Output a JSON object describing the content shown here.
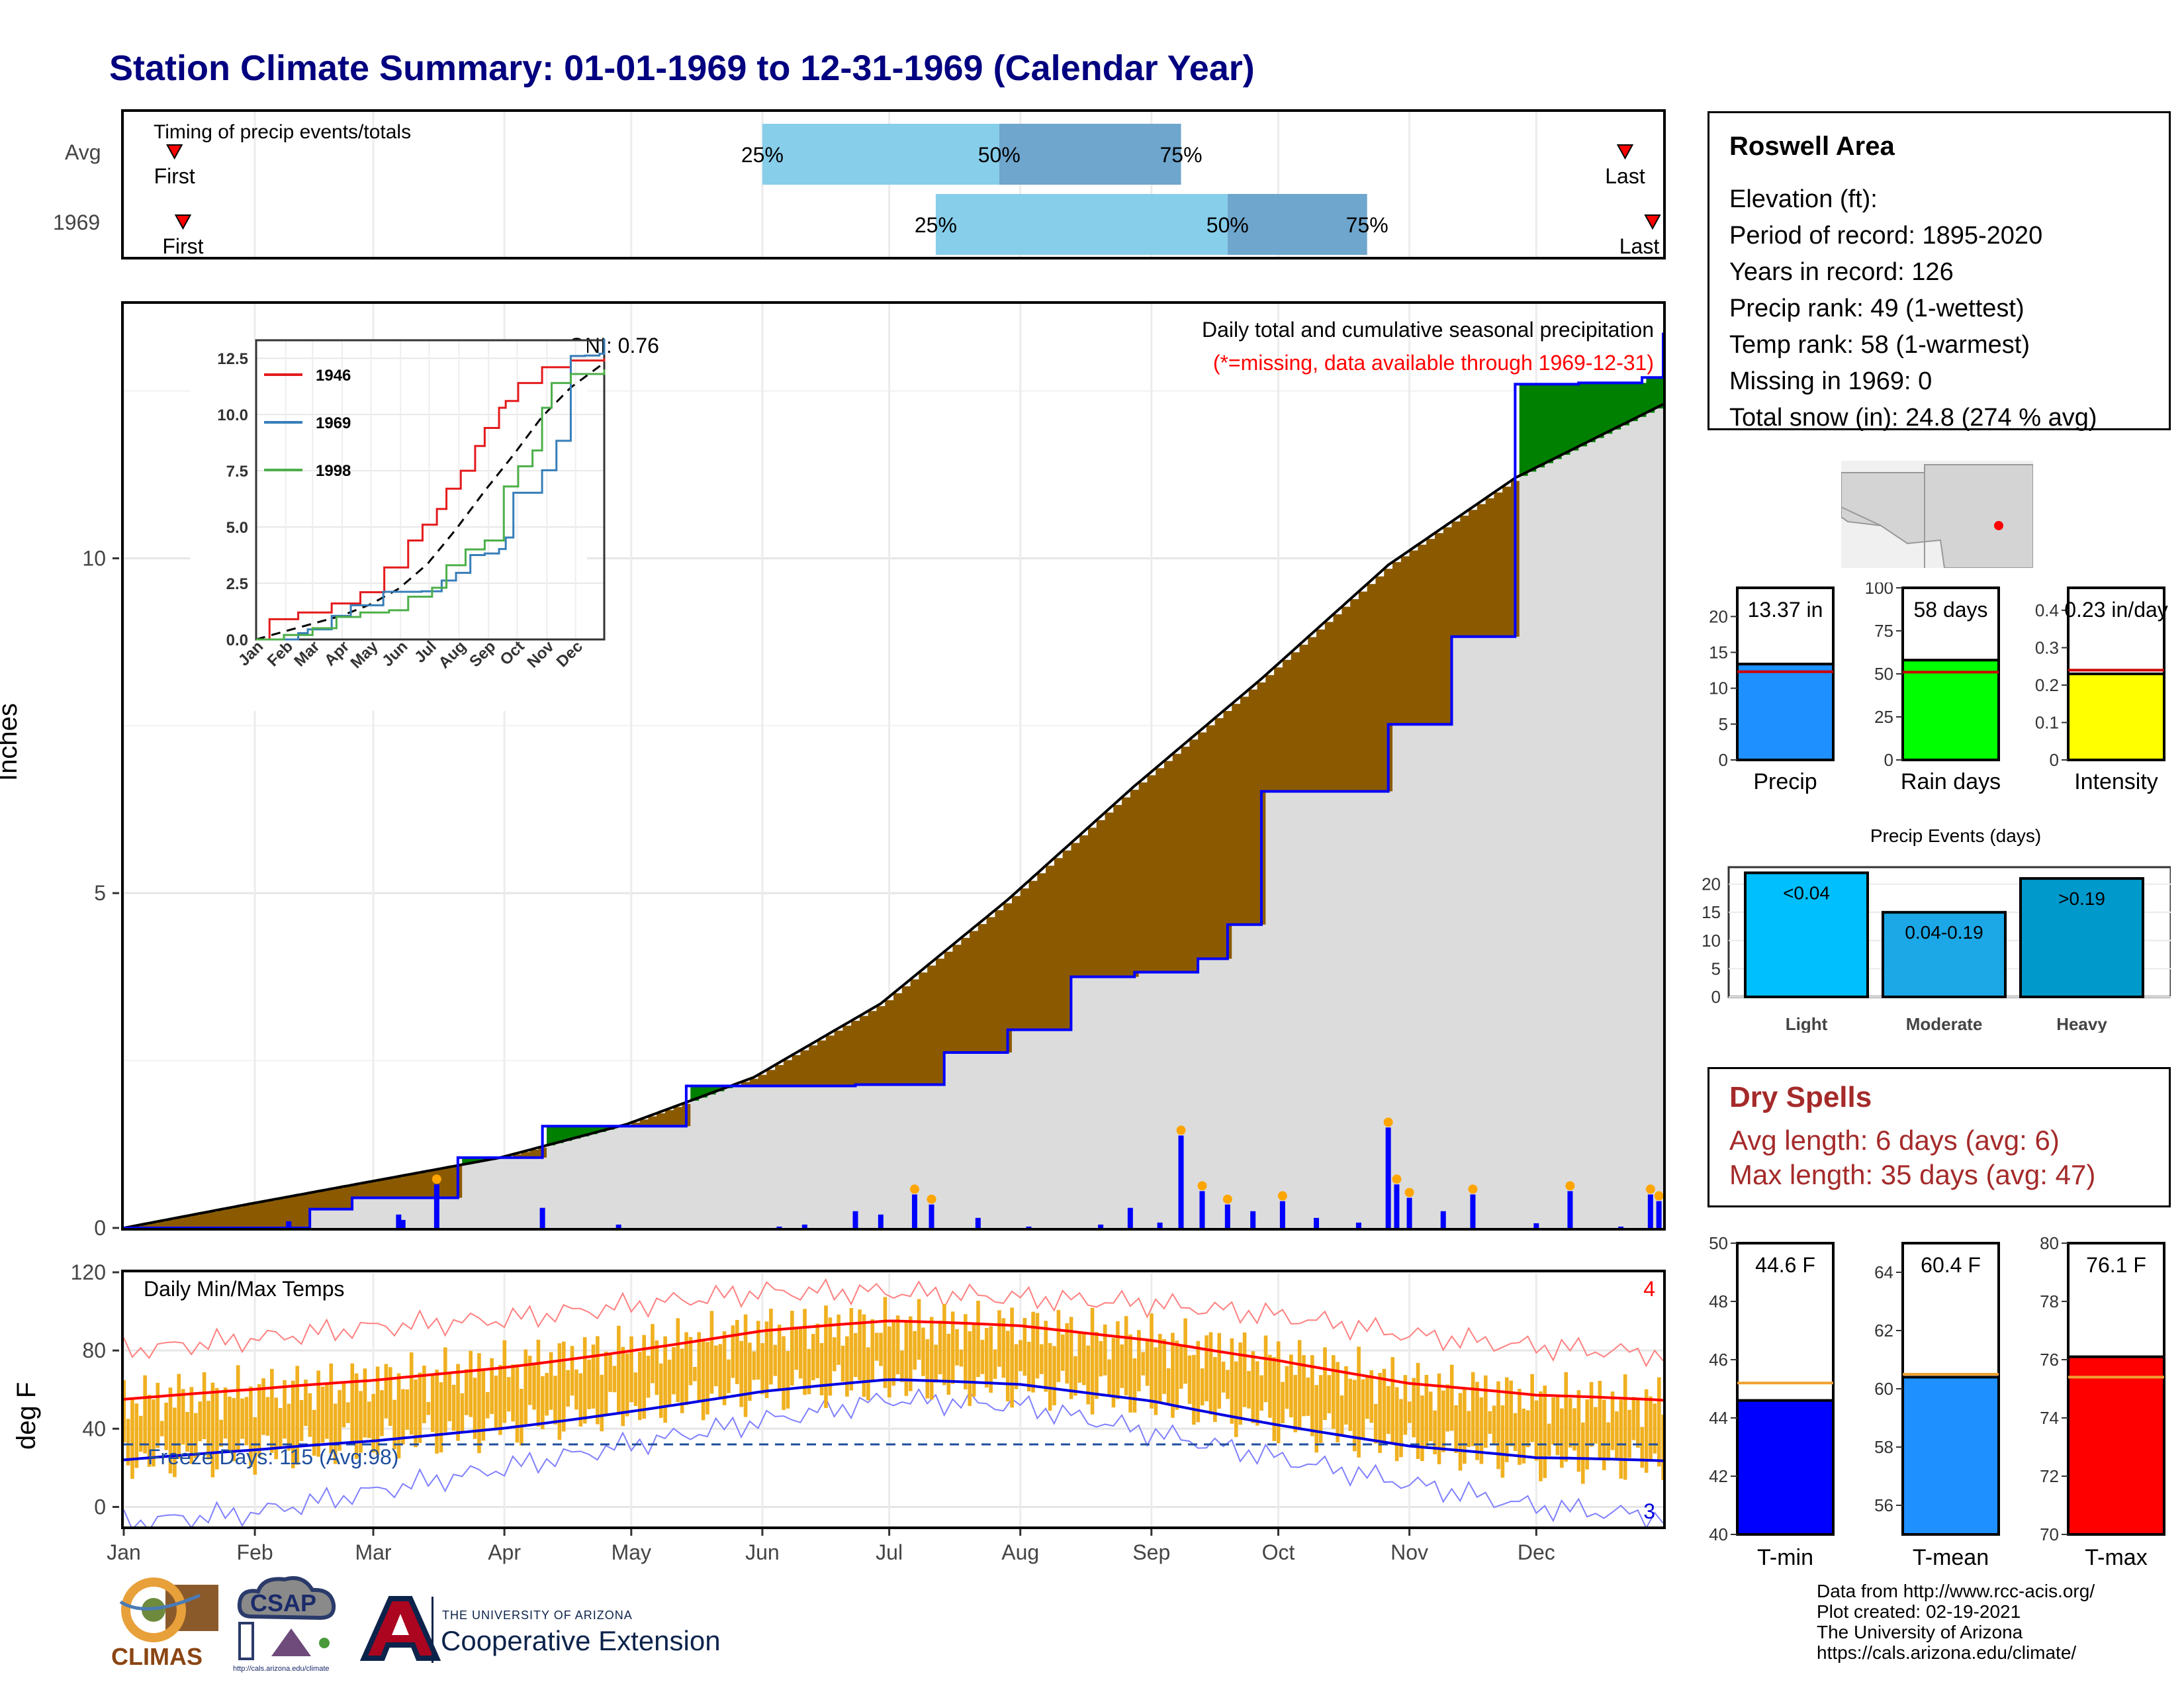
{
  "title": "Station Climate Summary: 01-01-1969 to 12-31-1969 (Calendar Year)",
  "colors": {
    "title": "#000080",
    "dark_brown": "#8B5A00",
    "green": "#008000",
    "blue": "#0000FF",
    "grey": "#DCDCDC",
    "orange": "#F0B020",
    "red": "#FF0000"
  },
  "timing": {
    "label": "Timing of precip events/totals",
    "rows": [
      {
        "name": "Avg",
        "first_label": "First",
        "last_label": "Last",
        "first": "Jan 13",
        "last": "Dec 22",
        "q25": "Jun 1",
        "q50": "Jul 27",
        "q75": "Sep 8"
      },
      {
        "name": "1969",
        "first_label": "First",
        "last_label": "Last",
        "first": "Jan 15",
        "last": "Dec 31",
        "q25": "Jul 12",
        "q50": "Sep 19",
        "q75": "Oct 22"
      }
    ],
    "q_labels": [
      "25%",
      "50%",
      "75%"
    ]
  },
  "precip_panel": {
    "ylabel": "Inches",
    "header": "Daily total and cumulative seasonal precipitation",
    "missing_note": "(*=missing, data available through 1969-12-31)",
    "oni": "ONI: 0.76",
    "yticks": [
      0,
      5,
      10
    ]
  },
  "inset": {
    "yticks": [
      "0.0",
      "2.5",
      "5.0",
      "7.5",
      "10.0",
      "12.5"
    ],
    "months": [
      "Jan",
      "Feb",
      "Mar",
      "Apr",
      "May",
      "Jun",
      "Jul",
      "Aug",
      "Sep",
      "Oct",
      "Nov",
      "Dec"
    ],
    "legend": [
      {
        "name": "1946",
        "color": "#e41a1c"
      },
      {
        "name": "1969",
        "color": "#377eb8"
      },
      {
        "name": "1998",
        "color": "#4daf4a"
      }
    ]
  },
  "temp_panel": {
    "ylabel": "deg F",
    "label": "Daily Min/Max Temps",
    "freeze": "Freeze Days: 115 (Avg:98)",
    "count_hot": "4",
    "count_cold": "3",
    "yticks": [
      0,
      40,
      80,
      120
    ]
  },
  "months": [
    "Jan",
    "Feb",
    "Mar",
    "Apr",
    "May",
    "Jun",
    "Jul",
    "Aug",
    "Sep",
    "Oct",
    "Nov",
    "Dec"
  ],
  "station": {
    "name": "Roswell Area",
    "lines": [
      "Elevation (ft):",
      "Period of record: 1895-2020",
      "Years in record: 126",
      "Precip rank: 49 (1-wettest)",
      "Temp rank: 58 (1-warmest)",
      "Missing in 1969: 0",
      "Total snow (in): 24.8 (274 % avg)"
    ]
  },
  "summary_bars": [
    {
      "label": "Precip",
      "value": 13.37,
      "text": "13.37 in",
      "avg": 12.3,
      "ymax": 24,
      "ticks": [
        0,
        5,
        10,
        15,
        20
      ],
      "color": "#1E90FF"
    },
    {
      "label": "Rain days",
      "value": 58,
      "text": "58 days",
      "avg": 51,
      "ymax": 100,
      "ticks": [
        0,
        25,
        50,
        75,
        100
      ],
      "color": "#00FF00"
    },
    {
      "label": "Intensity",
      "value": 0.23,
      "text": "0.23 in/day",
      "avg": 0.24,
      "ymax": 0.46,
      "ticks": [
        0.0,
        0.1,
        0.2,
        0.3,
        0.4
      ],
      "color": "#FFFF00"
    }
  ],
  "events": {
    "title": "Precip Events (days)",
    "categories": [
      "Light",
      "Moderate",
      "Heavy"
    ],
    "labels": [
      "<0.04",
      "0.04-0.19",
      ">0.19"
    ],
    "values": [
      22,
      15,
      21
    ],
    "colors": [
      "#00BFFF",
      "#1CA7E6",
      "#0099CC"
    ],
    "ticks": [
      0,
      5,
      10,
      15,
      20
    ]
  },
  "dry_spells": {
    "title": "Dry Spells",
    "avg": "Avg length: 6 days (avg: 6)",
    "max": "Max length: 35 days (avg: 47)"
  },
  "temp_bars": [
    {
      "label": "T-min",
      "value": 44.6,
      "text": "44.6 F",
      "avg": 45.2,
      "ymin": 40,
      "ymax": 50,
      "ticks": [
        40,
        42,
        44,
        46,
        48,
        50
      ],
      "color": "#0000FF"
    },
    {
      "label": "T-mean",
      "value": 60.4,
      "text": "60.4 F",
      "avg": 60.5,
      "ymin": 55,
      "ymax": 65,
      "ticks": [
        56,
        58,
        60,
        62,
        64
      ],
      "color": "#1E90FF"
    },
    {
      "label": "T-max",
      "value": 76.1,
      "text": "76.1 F",
      "avg": 75.4,
      "ymin": 70,
      "ymax": 80,
      "ticks": [
        70,
        72,
        74,
        76,
        78,
        80
      ],
      "color": "#FF0000"
    }
  ],
  "credits": [
    "Data from http://www.rcc-acis.org/",
    "Plot created: 02-19-2021",
    "The University of Arizona",
    "https://cals.arizona.edu/climate/"
  ],
  "logos": {
    "climas": "CLIMAS",
    "csap": "CSAP",
    "csap_url": "http://cals.arizona.edu/climate",
    "ua_small": "THE UNIVERSITY OF ARIZONA",
    "ua_big": "Cooperative Extension"
  },
  "chart_data": [
    {
      "type": "area",
      "title": "Daily total and cumulative seasonal precipitation",
      "ylabel": "Inches",
      "ylim": [
        0,
        13.8
      ],
      "series": [
        {
          "name": "1969",
          "x": [
            1,
            45,
            55,
            80,
            100,
            134,
            174,
            195,
            210,
            225,
            240,
            255,
            262,
            270,
            300,
            315,
            330,
            345,
            360,
            365
          ],
          "y": [
            0,
            0.28,
            0.45,
            1.05,
            1.52,
            2.12,
            2.14,
            2.62,
            2.96,
            3.75,
            3.82,
            4.02,
            4.53,
            6.52,
            7.52,
            8.83,
            12.6,
            12.62,
            12.7,
            13.37
          ]
        },
        {
          "x": [
            1,
            30,
            60,
            90,
            120,
            150,
            180,
            210,
            240,
            270,
            300,
            330,
            365
          ],
          "y": [
            0,
            0.35,
            0.7,
            1.05,
            1.55,
            2.25,
            3.35,
            4.9,
            6.6,
            8.2,
            9.9,
            11.2,
            12.3
          ]
        }
      ],
      "daily_precip": [
        [
          15,
          0.02
        ],
        [
          40,
          0.1
        ],
        [
          66,
          0.2
        ],
        [
          67,
          0.12
        ],
        [
          75,
          0.65
        ],
        [
          100,
          0.3
        ],
        [
          118,
          0.05
        ],
        [
          156,
          0.02
        ],
        [
          162,
          0.05
        ],
        [
          174,
          0.25
        ],
        [
          180,
          0.2
        ],
        [
          188,
          0.5
        ],
        [
          192,
          0.35
        ],
        [
          203,
          0.15
        ],
        [
          215,
          0.02
        ],
        [
          232,
          0.05
        ],
        [
          239,
          0.3
        ],
        [
          246,
          0.08
        ],
        [
          251,
          1.38
        ],
        [
          256,
          0.55
        ],
        [
          262,
          0.35
        ],
        [
          268,
          0.25
        ],
        [
          275,
          0.4
        ],
        [
          283,
          0.15
        ],
        [
          293,
          0.08
        ],
        [
          300,
          1.5
        ],
        [
          302,
          0.65
        ],
        [
          305,
          0.45
        ],
        [
          313,
          0.25
        ],
        [
          320,
          0.5
        ],
        [
          335,
          0.07
        ],
        [
          343,
          0.55
        ],
        [
          355,
          0.02
        ],
        [
          362,
          0.5
        ],
        [
          364,
          0.4
        ]
      ]
    },
    {
      "type": "line",
      "title": "",
      "x_categories": [
        "Jan",
        "Feb",
        "Mar",
        "Apr",
        "May",
        "Jun",
        "Jul",
        "Aug",
        "Sep",
        "Oct",
        "Nov",
        "Dec"
      ],
      "ylim": [
        0,
        13.3
      ],
      "series": [
        {
          "name": "1946",
          "x": [
            1,
            15,
            45,
            80,
            110,
            135,
            160,
            175,
            190,
            200,
            215,
            230,
            240,
            255,
            262,
            275,
            300,
            330,
            365
          ],
          "y": [
            0,
            0.9,
            1.2,
            1.6,
            2.1,
            3.2,
            4.4,
            5.1,
            5.8,
            6.7,
            7.5,
            8.6,
            9.4,
            10.3,
            10.6,
            11.4,
            12.1,
            12.4,
            12.5
          ]
        },
        {
          "name": "1969",
          "x": [
            1,
            45,
            55,
            80,
            100,
            134,
            174,
            195,
            210,
            225,
            240,
            255,
            262,
            270,
            300,
            315,
            330,
            345,
            360,
            365
          ],
          "y": [
            0,
            0.28,
            0.45,
            1.05,
            1.52,
            2.12,
            2.14,
            2.62,
            2.96,
            3.75,
            3.82,
            4.02,
            4.53,
            6.52,
            7.52,
            8.83,
            12.6,
            12.62,
            12.7,
            13.37
          ]
        },
        {
          "name": "1998",
          "x": [
            1,
            30,
            60,
            85,
            110,
            140,
            160,
            185,
            200,
            220,
            240,
            260,
            275,
            290,
            300,
            310,
            330,
            365
          ],
          "y": [
            0,
            0.2,
            0.5,
            1.0,
            1.2,
            1.3,
            1.9,
            2.3,
            3.3,
            4.0,
            4.4,
            6.8,
            7.7,
            8.4,
            10.3,
            11.4,
            11.8,
            12.0
          ]
        }
      ]
    },
    {
      "type": "bar",
      "title": "",
      "categories": [
        "Precip",
        "Rain days",
        "Intensity"
      ],
      "values": [
        13.37,
        58,
        0.23
      ],
      "avg": [
        12.3,
        51,
        0.24
      ]
    },
    {
      "type": "bar",
      "title": "Precip Events (days)",
      "categories": [
        "Light",
        "Moderate",
        "Heavy"
      ],
      "values": [
        22,
        15,
        21
      ]
    },
    {
      "type": "bar",
      "title": "",
      "categories": [
        "T-min",
        "T-mean",
        "T-max"
      ],
      "values": [
        44.6,
        60.4,
        76.1
      ],
      "avg": [
        45.2,
        60.5,
        75.4
      ]
    },
    {
      "type": "line",
      "title": "Daily Min/Max Temps",
      "ylabel": "deg F",
      "ylim": [
        -10,
        120
      ],
      "series": [
        {
          "name": "Avg max",
          "x": [
            1,
            32,
            60,
            91,
            121,
            152,
            182,
            213,
            244,
            274,
            305,
            335,
            365
          ],
          "y": [
            55,
            59,
            64,
            72,
            81,
            90,
            94,
            92,
            86,
            76,
            63,
            56,
            54
          ]
        },
        {
          "name": "Avg min",
          "x": [
            1,
            32,
            60,
            91,
            121,
            152,
            182,
            213,
            244,
            274,
            305,
            335,
            365
          ],
          "y": [
            24,
            28,
            33,
            41,
            50,
            59,
            64,
            62,
            55,
            43,
            31,
            24,
            23
          ]
        },
        {
          "name": "Record high",
          "x": [
            1,
            32,
            60,
            91,
            121,
            152,
            182,
            213,
            244,
            274,
            305,
            335,
            365
          ],
          "y": [
            80,
            86,
            92,
            96,
            103,
            110,
            110,
            107,
            104,
            98,
            88,
            82,
            78
          ]
        },
        {
          "name": "Record low",
          "x": [
            1,
            32,
            60,
            91,
            121,
            152,
            182,
            213,
            244,
            274,
            305,
            335,
            365
          ],
          "y": [
            -8,
            -3,
            8,
            20,
            32,
            44,
            55,
            52,
            38,
            25,
            12,
            0,
            -5
          ]
        }
      ],
      "freeze_line": 32
    }
  ]
}
